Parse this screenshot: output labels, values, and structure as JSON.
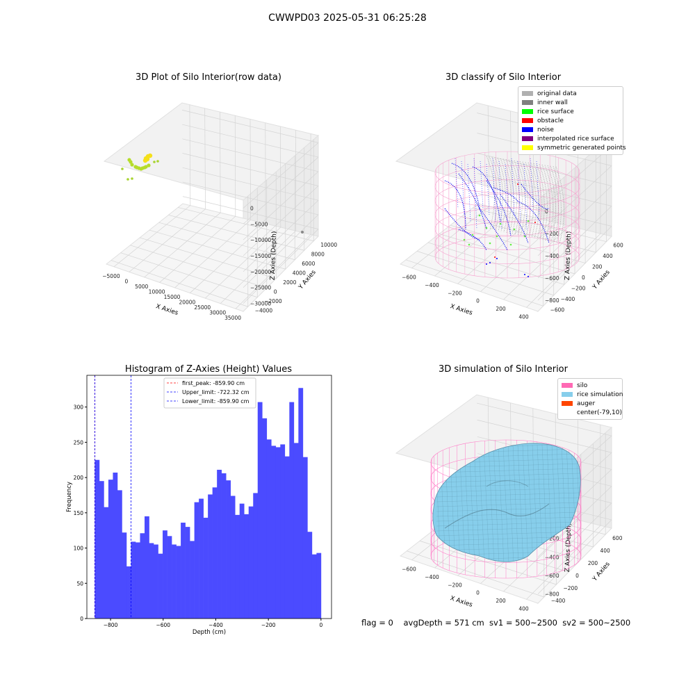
{
  "suptitle": "CWWPD03 2025-05-31 06:25:28",
  "panels": {
    "raw": {
      "title": "3D Plot of Silo Interior(row data)",
      "xlabel": "X Axies",
      "ylabel": "Y Axies",
      "zlabel": "Z Axies (Depth)",
      "xticks": [
        "−5000",
        "0",
        "5000",
        "10000",
        "15000",
        "20000",
        "25000",
        "30000",
        "35000"
      ],
      "yticks": [
        "−4000",
        "−2000",
        "0",
        "2000",
        "4000",
        "6000",
        "8000",
        "10000"
      ],
      "zticks": [
        "0",
        "−5000",
        "−10000",
        "−15000",
        "−20000",
        "−25000",
        "−30000"
      ]
    },
    "classify": {
      "title": "3D classify of Silo Interior",
      "xlabel": "X Axies",
      "ylabel": "Y Axies",
      "zlabel": "Z Axies (Depth)",
      "xticks": [
        "−600",
        "−400",
        "−200",
        "0",
        "200",
        "400"
      ],
      "yticks": [
        "−600",
        "−400",
        "−200",
        "0",
        "200",
        "400",
        "600"
      ],
      "zticks": [
        "0",
        "−200",
        "−400",
        "−600",
        "−800"
      ],
      "legend": [
        {
          "label": "original data",
          "color": "#b0b0b0"
        },
        {
          "label": "inner wall",
          "color": "#808080"
        },
        {
          "label": "rice surface",
          "color": "#00ff00"
        },
        {
          "label": "obstacle",
          "color": "#ff0000"
        },
        {
          "label": "noise",
          "color": "#0000ff"
        },
        {
          "label": "interpolated rice surface",
          "color": "#800080"
        },
        {
          "label": "symmetric generated points",
          "color": "#ffff00"
        }
      ]
    },
    "sim": {
      "title": "3D simulation of Silo Interior",
      "xlabel": "X Axies",
      "ylabel": "Y Axies",
      "zlabel": "Z Axies (Depth)",
      "xticks": [
        "−600",
        "−400",
        "−200",
        "0",
        "200",
        "400"
      ],
      "yticks": [
        "−400",
        "−200",
        "0",
        "200",
        "400",
        "600"
      ],
      "zticks": [
        "200",
        "0",
        "−200",
        "−400",
        "−600",
        "−800"
      ],
      "legend": [
        {
          "label": "silo",
          "color": "#ff69b4"
        },
        {
          "label": "rice simulation",
          "color": "#87ceeb"
        },
        {
          "label": "auger",
          "color": "#ff4500"
        },
        {
          "label": "center(-79,10)",
          "color": "#ffffff"
        }
      ]
    }
  },
  "chart_data": {
    "type": "bar",
    "title": "Histogram of Z-Axies (Height) Values",
    "xlabel": "Depth (cm)",
    "ylabel": "Frequency",
    "xlim": [
      -890,
      40
    ],
    "ylim": [
      0,
      345
    ],
    "xticks": [
      -800,
      -600,
      -400,
      -200,
      0
    ],
    "yticks": [
      0,
      50,
      100,
      150,
      200,
      250,
      300
    ],
    "bar_color": "#4b4bff",
    "bin_start": -859.9,
    "bin_width": 17.2,
    "values": [
      225,
      195,
      158,
      197,
      207,
      182,
      122,
      74,
      109,
      108,
      121,
      145,
      107,
      105,
      92,
      125,
      117,
      105,
      103,
      136,
      130,
      110,
      165,
      170,
      143,
      176,
      186,
      211,
      206,
      196,
      174,
      147,
      163,
      148,
      159,
      178,
      307,
      284,
      254,
      245,
      243,
      247,
      230,
      307,
      249,
      327,
      229,
      123,
      91,
      93
    ],
    "lines": [
      {
        "label": "first_peak: -859.90 cm",
        "x": -859.9,
        "color": "#ff0000"
      },
      {
        "label": "Upper_limit: -722.32 cm",
        "x": -722.32,
        "color": "#0000ff"
      },
      {
        "label": "Lower_limit: -859.90 cm",
        "x": -859.9,
        "color": "#0000ff"
      }
    ]
  },
  "footer": "flag = 0    avgDepth = 571 cm  sv1 = 500~2500  sv2 = 500~2500"
}
